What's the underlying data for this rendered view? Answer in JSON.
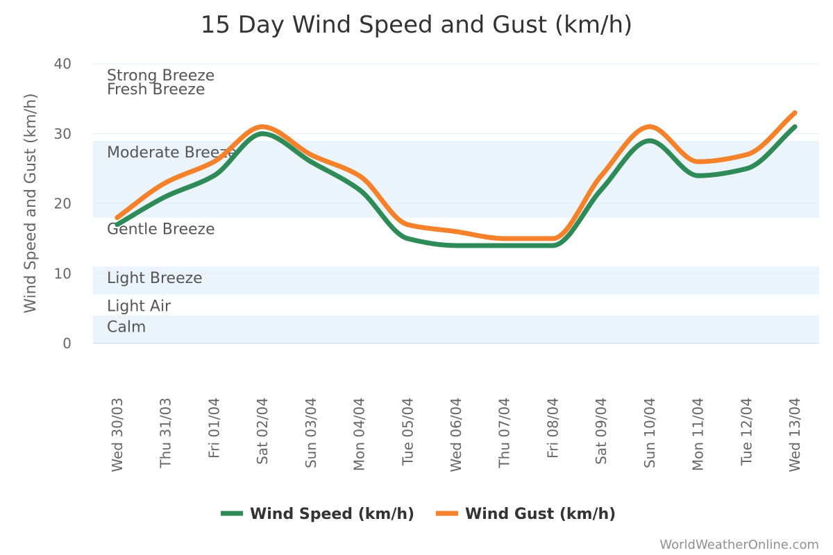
{
  "chart_data": {
    "type": "line",
    "title": "15 Day Wind Speed and Gust (km/h)",
    "ylabel": "Wind Speed and Gust (km/h)",
    "xlabel": "",
    "ylim": [
      0,
      40
    ],
    "yticks": [
      0,
      10,
      20,
      30,
      40
    ],
    "categories": [
      "Wed 30/03",
      "Thu 31/03",
      "Fri 01/04",
      "Sat 02/04",
      "Sun 03/04",
      "Mon 04/04",
      "Tue 05/04",
      "Wed 06/04",
      "Thu 07/04",
      "Fri 08/04",
      "Sat 09/04",
      "Sun 10/04",
      "Mon 11/04",
      "Tue 12/04",
      "Wed 13/04"
    ],
    "series": [
      {
        "name": "Wind Speed (km/h)",
        "color": "#2e8b57",
        "values": [
          17,
          21,
          24,
          30,
          26,
          22,
          15,
          14,
          14,
          14,
          22,
          29,
          24,
          25,
          31
        ]
      },
      {
        "name": "Wind Gust (km/h)",
        "color": "#f5822a",
        "values": [
          18,
          23,
          26,
          31,
          27,
          24,
          17,
          16,
          15,
          15,
          24,
          31,
          26,
          27,
          33
        ]
      }
    ],
    "bands": [
      {
        "label": "Calm",
        "from": 0,
        "to": 4,
        "shaded": true
      },
      {
        "label": "Light Air",
        "from": 4,
        "to": 7,
        "shaded": false
      },
      {
        "label": "Light Breeze",
        "from": 7,
        "to": 11,
        "shaded": true
      },
      {
        "label": "Gentle Breeze",
        "from": 11,
        "to": 18,
        "shaded": false
      },
      {
        "label": "Moderate Breeze",
        "from": 18,
        "to": 29,
        "shaded": true
      },
      {
        "label": "Fresh Breeze",
        "from": 29,
        "to": 38,
        "shaded": false
      },
      {
        "label": "Strong Breeze",
        "from": 38,
        "to": 40,
        "shaded": false
      }
    ],
    "band_color": "#ebf4fa",
    "grid": true,
    "legend_position": "bottom-center"
  },
  "credits": "WorldWeatherOnline.com"
}
